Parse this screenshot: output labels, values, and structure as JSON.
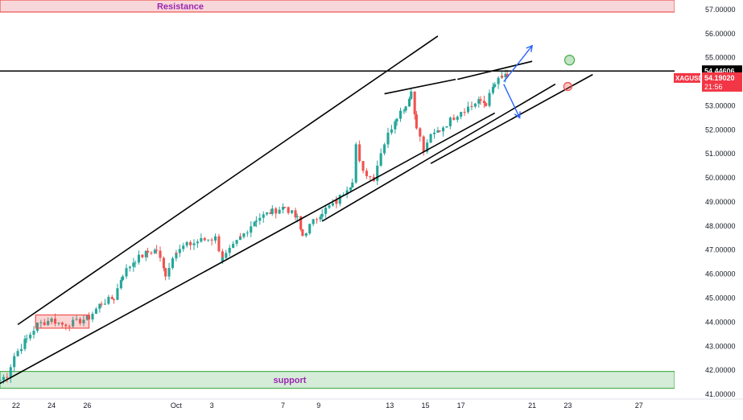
{
  "chart_data": {
    "type": "candlestick",
    "symbol": "XAGUSD",
    "ylim": [
      40.8,
      57.4
    ],
    "y_ticks": [
      "57.00000",
      "56.00000",
      "55.00000",
      "54.00000",
      "53.00000",
      "52.00000",
      "51.00000",
      "50.00000",
      "49.00000",
      "48.00000",
      "47.00000",
      "46.00000",
      "45.00000",
      "44.00000",
      "43.00000",
      "42.00000",
      "41.00000"
    ],
    "x_ticks": [
      {
        "label": "22",
        "day": 0
      },
      {
        "label": "24",
        "day": 2
      },
      {
        "label": "26",
        "day": 4
      },
      {
        "label": "Oct",
        "day": 9
      },
      {
        "label": "3",
        "day": 11
      },
      {
        "label": "7",
        "day": 15
      },
      {
        "label": "9",
        "day": 17
      },
      {
        "label": "13",
        "day": 21
      },
      {
        "label": "15",
        "day": 23
      },
      {
        "label": "17",
        "day": 25
      },
      {
        "label": "21",
        "day": 29
      },
      {
        "label": "23",
        "day": 31
      },
      {
        "label": "27",
        "day": 35
      }
    ],
    "xlim": [
      -0.9,
      37.0
    ],
    "colors": {
      "up": "#26a69a",
      "down": "#ef5350",
      "trend": "#000000",
      "arrow": "#2962ff",
      "resistance_fill": "#f8d7da",
      "resistance_edge": "#ef5350",
      "resistance_text": "#9c27b0",
      "support_fill": "#d4ecd8",
      "support_edge": "#4caf50",
      "support_text": "#9c27b0",
      "price_tag": "#f23645",
      "level_tag": "#000000"
    },
    "resistance_zone": {
      "label": "Resistance",
      "low": 56.9,
      "high": 57.4
    },
    "support_zone": {
      "label": "support",
      "low": 41.25,
      "high": 41.95
    },
    "horizontal_level": {
      "value": 54.44606,
      "label": "54.44606"
    },
    "last_price": {
      "value": 54.1902,
      "label": "54.19020",
      "countdown": "21:56",
      "symbol_label": "XAGUSD"
    },
    "trend_lines": [
      {
        "x1": -0.9,
        "y1": 41.45,
        "x2": 26.9,
        "y2": 52.7
      },
      {
        "x1": 0.1,
        "y1": 43.9,
        "x2": 23.7,
        "y2": 55.9
      },
      {
        "x1": 17.2,
        "y1": 48.2,
        "x2": 30.3,
        "y2": 53.9
      },
      {
        "x1": 23.3,
        "y1": 50.6,
        "x2": 32.4,
        "y2": 54.3
      },
      {
        "x1": 20.7,
        "y1": 53.5,
        "x2": 24.7,
        "y2": 54.1
      },
      {
        "x1": 24.8,
        "y1": 54.1,
        "x2": 29.0,
        "y2": 54.85
      }
    ],
    "consolidation_box": {
      "x1": 1.1,
      "x2": 4.1,
      "y_low": 43.75,
      "y_high": 44.3
    },
    "arrows": [
      {
        "from": [
          27.4,
          54.0
        ],
        "to": [
          29.0,
          55.5
        ]
      },
      {
        "from": [
          27.4,
          53.9
        ],
        "to": [
          28.3,
          52.5
        ]
      }
    ],
    "circles": [
      {
        "x": 31.1,
        "y": 54.9,
        "color": "#4caf50"
      },
      {
        "x": 31.0,
        "y": 53.8,
        "color": "#ef5350"
      }
    ],
    "anchors": [
      [
        -0.9,
        41.6
      ],
      [
        -0.5,
        41.8
      ],
      [
        -0.1,
        42.6
      ],
      [
        0.6,
        43.3
      ],
      [
        1.2,
        43.9
      ],
      [
        2.0,
        44.1
      ],
      [
        2.6,
        43.9
      ],
      [
        3.4,
        44.0
      ],
      [
        4.1,
        44.2
      ],
      [
        4.8,
        44.8
      ],
      [
        5.5,
        45.0
      ],
      [
        6.0,
        46.0
      ],
      [
        6.7,
        46.6
      ],
      [
        7.4,
        46.9
      ],
      [
        7.9,
        47.0
      ],
      [
        8.4,
        46.0
      ],
      [
        9.0,
        47.0
      ],
      [
        9.6,
        47.2
      ],
      [
        10.4,
        47.4
      ],
      [
        11.2,
        47.5
      ],
      [
        11.6,
        46.6
      ],
      [
        12.6,
        47.5
      ],
      [
        13.5,
        48.3
      ],
      [
        14.4,
        48.6
      ],
      [
        15.1,
        48.8
      ],
      [
        15.8,
        48.3
      ],
      [
        16.1,
        47.6
      ],
      [
        16.5,
        48.0
      ],
      [
        17.2,
        48.6
      ],
      [
        18.0,
        49.0
      ],
      [
        18.6,
        49.6
      ],
      [
        18.9,
        49.8
      ],
      [
        19.1,
        51.3
      ],
      [
        19.5,
        50.3
      ],
      [
        20.1,
        50.0
      ],
      [
        20.5,
        51.1
      ],
      [
        20.9,
        51.8
      ],
      [
        21.4,
        52.6
      ],
      [
        21.9,
        53.0
      ],
      [
        22.2,
        53.6
      ],
      [
        22.5,
        52.2
      ],
      [
        22.9,
        51.1
      ],
      [
        23.3,
        51.7
      ],
      [
        23.8,
        52.0
      ],
      [
        24.4,
        52.4
      ],
      [
        25.0,
        52.8
      ],
      [
        25.6,
        53.0
      ],
      [
        26.1,
        53.2
      ],
      [
        26.4,
        53.1
      ],
      [
        26.9,
        53.9
      ],
      [
        27.3,
        54.2
      ],
      [
        27.6,
        54.19
      ]
    ],
    "bars_per_day": 5
  }
}
